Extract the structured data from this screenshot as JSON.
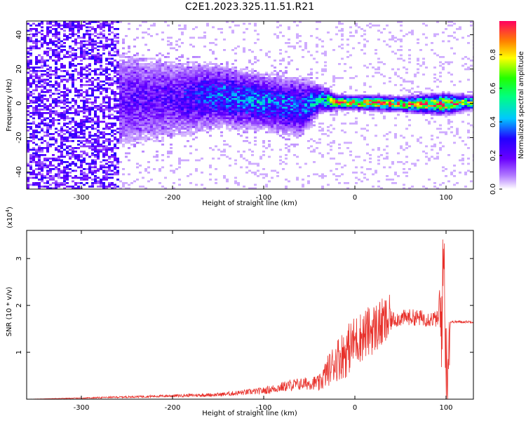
{
  "title": "C2E1.2023.325.11.51.R21",
  "chart_data": [
    {
      "type": "heatmap",
      "xlabel": "Height of straight line (km)",
      "ylabel": "Frequency (Hz)",
      "xlim": [
        -360,
        130
      ],
      "ylim": [
        -50,
        48
      ],
      "x_ticks": [
        -300,
        -200,
        -100,
        0,
        100
      ],
      "y_ticks": [
        -40,
        -20,
        0,
        20,
        40
      ],
      "colorbar": {
        "label": "Normalized spectral amplitude",
        "range": [
          0,
          1
        ],
        "ticks": [
          0.0,
          0.2,
          0.4,
          0.6,
          0.8
        ],
        "tick_labels": [
          "0.0",
          "0.2",
          "0.4",
          "0.6",
          "0.8"
        ]
      },
      "ridge_profile": [
        {
          "x": -360,
          "freq": 0,
          "amp": 0.12,
          "spread": 45
        },
        {
          "x": -300,
          "freq": 0,
          "amp": 0.14,
          "spread": 40
        },
        {
          "x": -270,
          "freq": 2,
          "amp": 0.18,
          "spread": 16
        },
        {
          "x": -200,
          "freq": 3,
          "amp": 0.2,
          "spread": 12
        },
        {
          "x": -150,
          "freq": 5,
          "amp": 0.35,
          "spread": 9
        },
        {
          "x": -100,
          "freq": 1,
          "amp": 0.38,
          "spread": 8
        },
        {
          "x": -60,
          "freq": -2,
          "amp": 0.32,
          "spread": 9
        },
        {
          "x": -40,
          "freq": 3,
          "amp": 0.45,
          "spread": 4
        },
        {
          "x": -20,
          "freq": 1,
          "amp": 0.8,
          "spread": 2
        },
        {
          "x": 0,
          "freq": 1,
          "amp": 0.85,
          "spread": 2
        },
        {
          "x": 50,
          "freq": 0,
          "amp": 0.9,
          "spread": 2
        },
        {
          "x": 95,
          "freq": 0,
          "amp": 0.85,
          "spread": 3
        },
        {
          "x": 130,
          "freq": 1,
          "amp": 0.6,
          "spread": 2
        }
      ]
    },
    {
      "type": "line",
      "xlabel": "Height of straight line (km)",
      "ylabel": "SNR (10 * v/v)",
      "y_multiplier": "(x10",
      "y_multiplier_exp": "4",
      "y_multiplier_close": ")",
      "xlim": [
        -360,
        130
      ],
      "ylim": [
        0,
        3.6
      ],
      "x_ticks": [
        -300,
        -200,
        -100,
        0,
        100
      ],
      "y_ticks": [
        1,
        2,
        3
      ],
      "color": "#e8312b",
      "series": [
        {
          "x": [
            -360,
            -300,
            -250,
            -200,
            -150,
            -100,
            -70,
            -40,
            -30,
            -20,
            -10,
            0,
            20,
            40,
            60,
            80,
            95,
            98,
            100,
            105,
            130
          ],
          "y": [
            0.0,
            0.02,
            0.04,
            0.06,
            0.08,
            0.15,
            0.25,
            0.3,
            0.6,
            0.85,
            1.0,
            1.25,
            1.5,
            1.7,
            1.75,
            1.72,
            1.7,
            3.2,
            0.5,
            1.65,
            1.65
          ]
        }
      ]
    }
  ]
}
